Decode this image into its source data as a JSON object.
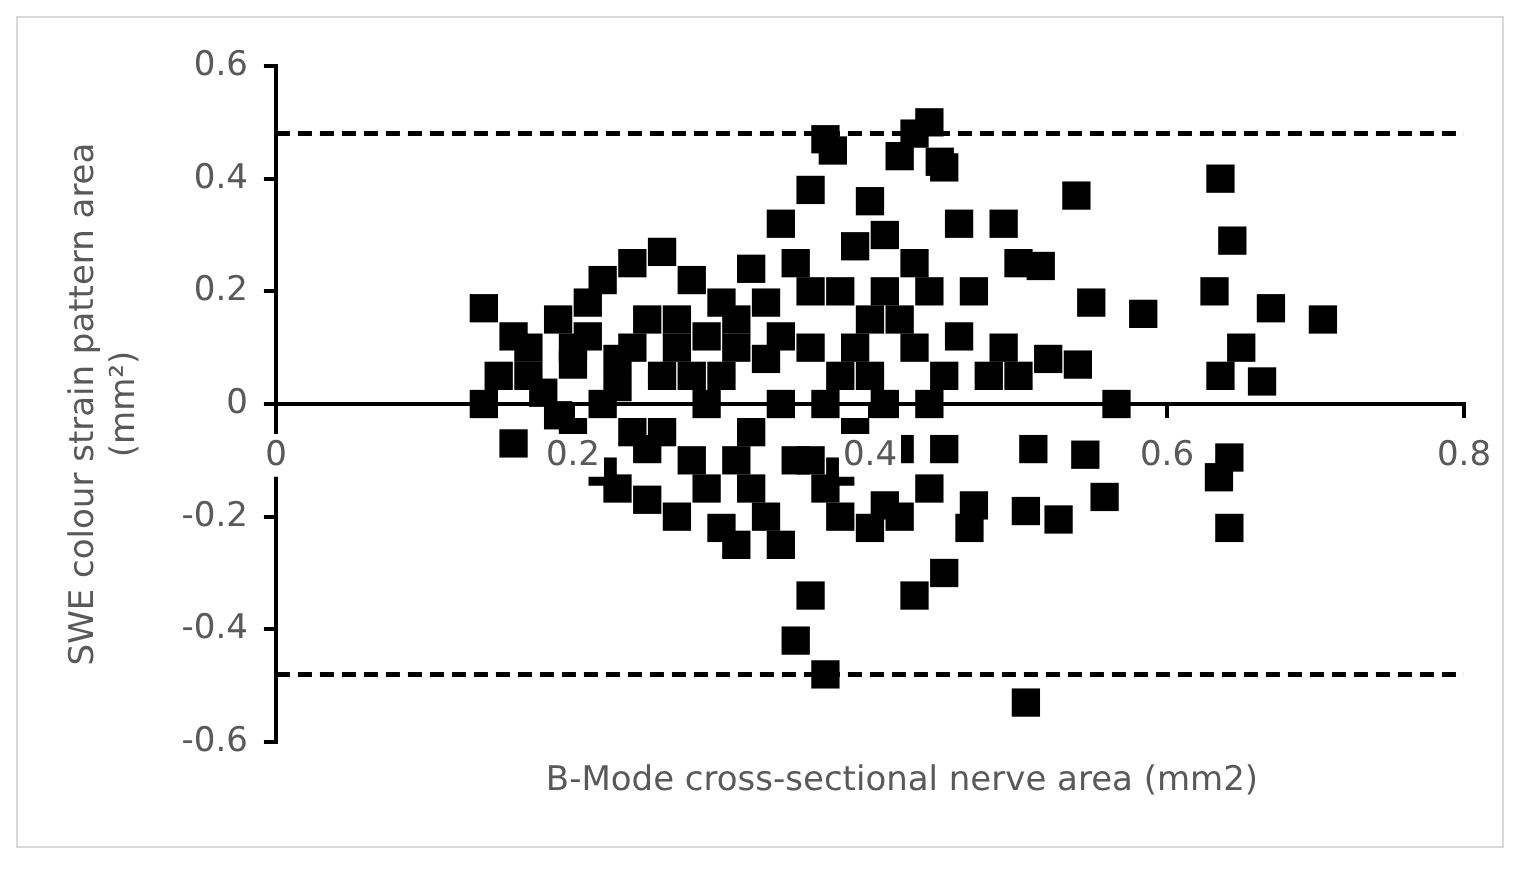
{
  "chart_data": {
    "type": "scatter",
    "xlabel": "B-Mode cross-sectional nerve area (mm2)",
    "ylabel": "SWE colour strain pattern area (mm²)",
    "marker": "square",
    "legend": false,
    "grid": false,
    "xlim": [
      0,
      0.8
    ],
    "xticks": [
      0,
      0.2,
      0.4,
      0.6,
      0.8
    ],
    "ylim": [
      -0.6,
      0.6
    ],
    "yticks": [
      -0.6,
      -0.4,
      -0.2,
      0,
      0.2,
      0.4,
      0.6
    ],
    "ref_lines": [
      {
        "axis": "y",
        "value": 0.48,
        "color": "#000000",
        "line_style": "dashed"
      },
      {
        "axis": "y",
        "value": -0.48,
        "color": "#000000",
        "line_style": "dashed"
      }
    ],
    "series": [
      {
        "color": "#000000",
        "x": [
          0.14,
          0.14,
          0.15,
          0.16,
          0.16,
          0.17,
          0.18,
          0.19,
          0.2,
          0.2,
          0.21,
          0.22,
          0.22,
          0.23,
          0.23,
          0.24,
          0.24,
          0.25,
          0.25,
          0.26,
          0.26,
          0.27,
          0.27,
          0.28,
          0.28,
          0.29,
          0.3,
          0.3,
          0.31,
          0.31,
          0.32,
          0.32,
          0.33,
          0.34,
          0.34,
          0.35,
          0.36,
          0.36,
          0.36,
          0.36,
          0.37,
          0.37,
          0.375,
          0.38,
          0.38,
          0.39,
          0.39,
          0.4,
          0.4,
          0.4,
          0.41,
          0.41,
          0.42,
          0.42,
          0.43,
          0.43,
          0.44,
          0.44,
          0.45,
          0.45,
          0.45,
          0.43,
          0.47,
          0.47,
          0.45,
          0.46,
          0.467,
          0.49,
          0.5,
          0.515,
          0.49,
          0.51,
          0.52,
          0.505,
          0.54,
          0.505,
          0.527,
          0.539,
          0.549,
          0.584,
          0.566,
          0.545,
          0.558,
          0.636,
          0.644,
          0.632,
          0.67,
          0.705,
          0.65,
          0.636,
          0.664,
          0.642,
          0.635,
          0.642,
          0.447,
          0.17,
          0.19,
          0.21,
          0.22,
          0.24,
          0.25,
          0.27,
          0.28,
          0.29,
          0.3,
          0.31,
          0.32,
          0.33,
          0.33,
          0.34,
          0.35,
          0.35,
          0.36,
          0.37,
          0.38,
          0.38,
          0.39,
          0.4,
          0.41,
          0.42,
          0.42,
          0.43,
          0.44,
          0.2,
          0.23,
          0.26,
          0.29,
          0.31,
          0.34,
          0.37,
          0.41,
          0.44,
          0.46,
          0.48,
          0.5
        ],
        "values": [
          0.17,
          0.0,
          0.05,
          -0.07,
          0.12,
          0.1,
          0.02,
          0.15,
          0.07,
          -0.05,
          0.18,
          -0.12,
          0.22,
          0.03,
          -0.15,
          0.25,
          0.1,
          -0.08,
          -0.17,
          0.27,
          0.05,
          -0.2,
          0.15,
          -0.1,
          0.22,
          0.0,
          0.18,
          -0.22,
          -0.25,
          0.1,
          0.24,
          -0.05,
          -0.2,
          0.32,
          -0.25,
          -0.42,
          -0.34,
          0.38,
          0.2,
          -0.1,
          0.47,
          -0.48,
          0.45,
          0.05,
          -0.2,
          0.28,
          -0.05,
          0.36,
          0.15,
          -0.22,
          0.3,
          0.0,
          0.44,
          -0.2,
          0.48,
          0.1,
          0.5,
          -0.15,
          0.42,
          0.05,
          -0.08,
          -0.34,
          0.2,
          -0.18,
          -0.3,
          0.32,
          -0.22,
          0.1,
          0.25,
          0.245,
          0.32,
          -0.08,
          0.08,
          -0.19,
          0.07,
          -0.53,
          -0.205,
          0.37,
          0.18,
          0.16,
          0.0,
          -0.09,
          -0.165,
          0.4,
          0.29,
          0.2,
          0.17,
          0.15,
          0.1,
          0.05,
          0.04,
          -0.095,
          -0.13,
          -0.22,
          0.43,
          0.05,
          -0.02,
          0.12,
          0.0,
          -0.05,
          0.15,
          0.1,
          0.05,
          -0.15,
          0.05,
          0.15,
          -0.15,
          0.08,
          0.18,
          0.0,
          0.25,
          -0.1,
          0.1,
          0.0,
          0.2,
          -0.12,
          0.1,
          0.05,
          0.2,
          0.15,
          -0.08,
          0.25,
          0.2,
          0.1,
          0.08,
          -0.05,
          0.12,
          -0.1,
          0.12,
          -0.15,
          -0.18,
          0.0,
          0.12,
          0.05,
          0.05
        ]
      }
    ]
  }
}
